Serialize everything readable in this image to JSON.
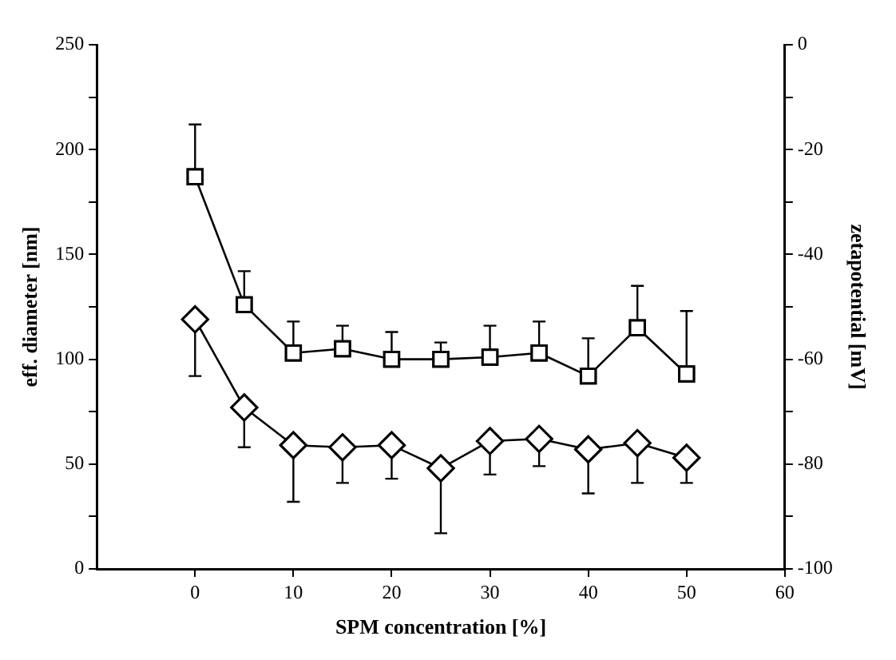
{
  "chart_data": {
    "type": "line",
    "xlabel": "SPM concentration [%]",
    "ylabel": "eff. diameter [nm]",
    "y2label": "zetapotential [mV]",
    "x": [
      0,
      5,
      10,
      15,
      20,
      25,
      30,
      35,
      40,
      45,
      50
    ],
    "series": [
      {
        "color": "#000000",
        "marker": "square",
        "values": [
          187,
          126,
          103,
          105,
          100,
          100,
          101,
          103,
          92,
          115,
          93
        ],
        "errors": [
          [
            187,
            212
          ],
          [
            126,
            142
          ],
          [
            103,
            118
          ],
          [
            105,
            116
          ],
          [
            100,
            113
          ],
          [
            100,
            108
          ],
          [
            101,
            116
          ],
          [
            103,
            118
          ],
          [
            92,
            110
          ],
          [
            115,
            135
          ],
          [
            93,
            123
          ]
        ]
      },
      {
        "color": "#000000",
        "marker": "diamond",
        "axis": "y2",
        "values": [
          -52.4,
          -69.2,
          -76.4,
          -76.8,
          -76.4,
          -80.8,
          -75.6,
          -75.2,
          -77.2,
          -76,
          -78.8
        ],
        "errors": [
          [
            -63.2,
            -52.4
          ],
          [
            -76.8,
            -69.2
          ],
          [
            -87.2,
            -76.4
          ],
          [
            -83.6,
            -76.8
          ],
          [
            -82.8,
            -76.4
          ],
          [
            -93.2,
            -80.8
          ],
          [
            -82,
            -75.6
          ],
          [
            -80.4,
            -75.2
          ],
          [
            -85.6,
            -77.2
          ],
          [
            -83.6,
            -76
          ],
          [
            -83.6,
            -78.8
          ]
        ]
      }
    ],
    "xlim": [
      -10,
      60
    ],
    "xticks": [
      0,
      10,
      20,
      30,
      40,
      50,
      60
    ],
    "ylim": [
      0,
      250
    ],
    "yticks": [
      0,
      {
        "value": 25,
        "label": null
      },
      50,
      {
        "value": 75,
        "label": null
      },
      100,
      {
        "value": 125,
        "label": null
      },
      150,
      {
        "value": 175,
        "label": null
      },
      200,
      {
        "value": 225,
        "label": null
      },
      250
    ],
    "y2lim": [
      -100,
      0
    ],
    "y2ticks": [
      -100,
      {
        "value": -90,
        "label": null
      },
      -80,
      {
        "value": -70,
        "label": null
      },
      -60,
      {
        "value": -50,
        "label": null
      },
      -40,
      {
        "value": -30,
        "label": null
      },
      -20,
      {
        "value": -10,
        "label": null
      },
      0
    ],
    "grid": false,
    "legend": false,
    "line_style": "solid"
  }
}
